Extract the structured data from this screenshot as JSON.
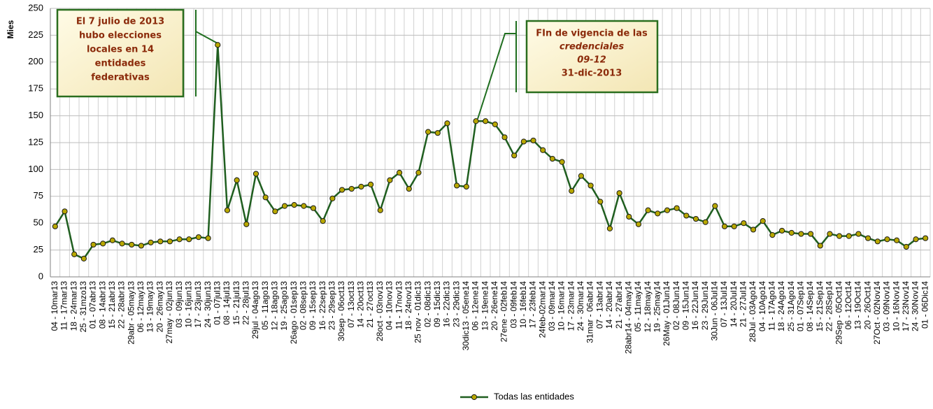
{
  "chart_data": {
    "type": "line",
    "y_label": "Mies",
    "categories": [
      "04 - 10mar13",
      "11 - 17mar13",
      "18 - 24mar13",
      "25 - 31mzo13",
      "01 - 07abr13",
      "08 - 14abr13",
      "15 - 21abr13",
      "22 - 28abr13",
      "29abr - 05may13",
      "06 - 12may13",
      "13 - 19may13",
      "20 - 26may13",
      "27may - 02jun13",
      "03 - 09jun13",
      "10 - 16jun13",
      "17 - 23jun13",
      "24 - 30jun13",
      "01 - 07jul13",
      "08 - 14jul13",
      "15 - 21jul13",
      "22 - 28jul13",
      "29jul - 04ago13",
      "05 - 11ago13",
      "12 - 18ago13",
      "19 - 25ago13",
      "26ago - 01sep13",
      "02 - 08sep13",
      "09 - 15sep13",
      "16 - 22sep13",
      "23 - 29sep13",
      "30sep - 06oct13",
      "07 - 13oct13",
      "14 - 20oct13",
      "21 - 27oct13",
      "28oct - 03nov13",
      "04 - 10nov13",
      "11 - 17nov13",
      "18 - 24nov13",
      "25 nov - 01dic13",
      "02 - 08dic13",
      "09 - 15dic13",
      "16 - 22dic13",
      "23 - 29dic13",
      "30dic13 - 05ene14",
      "06 - 12ene14",
      "13 - 19ene14",
      "20 - 26ene14",
      "27ene - 02feb14",
      "03 - 09feb14",
      "10 - 16feb14",
      "17 - 23feb14",
      "24feb-02mar14",
      "03 - 09mar14",
      "10 - 16mar14",
      "17 - 23mar14",
      "24 - 30mar14",
      "31mar - 06abr14",
      "07 - 13abr14",
      "14 - 20abr14",
      "21 - 27abr14",
      "28abr14 - 04may14",
      "05 - 11may14",
      "12 - 18may14",
      "19 - 25may14",
      "26May - 01Jun14",
      "02 - 08Jun14",
      "09 - 15Jun14",
      "16 - 22Jun14",
      "23 - 29Jun14",
      "30Jun - 06Jul14",
      "07 - 13Jul14",
      "14 - 20Jul14",
      "21 - 27Jul14",
      "28Jul - 03Ago14",
      "04 - 10Ago14",
      "11 - 17Ago14",
      "18 - 24Ago14",
      "25 - 31Ago14",
      "01 - 07Sep14",
      "08 - 14Sep14",
      "15 - 21Sep14",
      "22 - 28Sep14",
      "29Sep - 05Oct14",
      "06 - 12Oct14",
      "13 - 19Oct14",
      "20 - 26Oct14",
      "27Oct - 02Nov14",
      "03 - 09Nov14",
      "10 - 16Nov14",
      "17 - 23Nov14",
      "24 - 30Nov14",
      "01 - 06Dic14"
    ],
    "series": [
      {
        "name": "Todas las entidades",
        "color": "#1f5e1f",
        "marker_color": "#b8a800",
        "values": [
          47,
          61,
          21,
          17,
          30,
          31,
          34,
          31,
          30,
          29,
          32,
          33,
          33,
          35,
          35,
          37,
          36,
          216,
          62,
          90,
          49,
          96,
          74,
          61,
          66,
          67,
          66,
          64,
          52,
          73,
          81,
          82,
          84,
          86,
          62,
          90,
          97,
          82,
          97,
          135,
          134,
          143,
          85,
          84,
          145,
          145,
          142,
          130,
          113,
          126,
          127,
          118,
          110,
          107,
          80,
          94,
          85,
          70,
          45,
          78,
          56,
          49,
          62,
          59,
          62,
          64,
          57,
          54,
          51,
          66,
          47,
          47,
          50,
          44,
          52,
          39,
          43,
          41,
          40,
          40,
          29,
          40,
          38,
          38,
          40,
          36,
          33,
          35,
          34,
          28,
          35,
          36
        ]
      }
    ],
    "ylim": [
      0,
      250
    ],
    "yticks": [
      0,
      25,
      50,
      75,
      100,
      125,
      150,
      175,
      200,
      225,
      250
    ],
    "grid": true,
    "annotations": [
      {
        "lines": [
          "El 7 julio de 2013",
          "hubo elecciones",
          "locales en 14",
          "entidades",
          "federativas"
        ]
      },
      {
        "lines": [
          "FIn de vigencia de las",
          "credenciales",
          "09-12",
          "31-dic-2013"
        ]
      }
    ]
  }
}
